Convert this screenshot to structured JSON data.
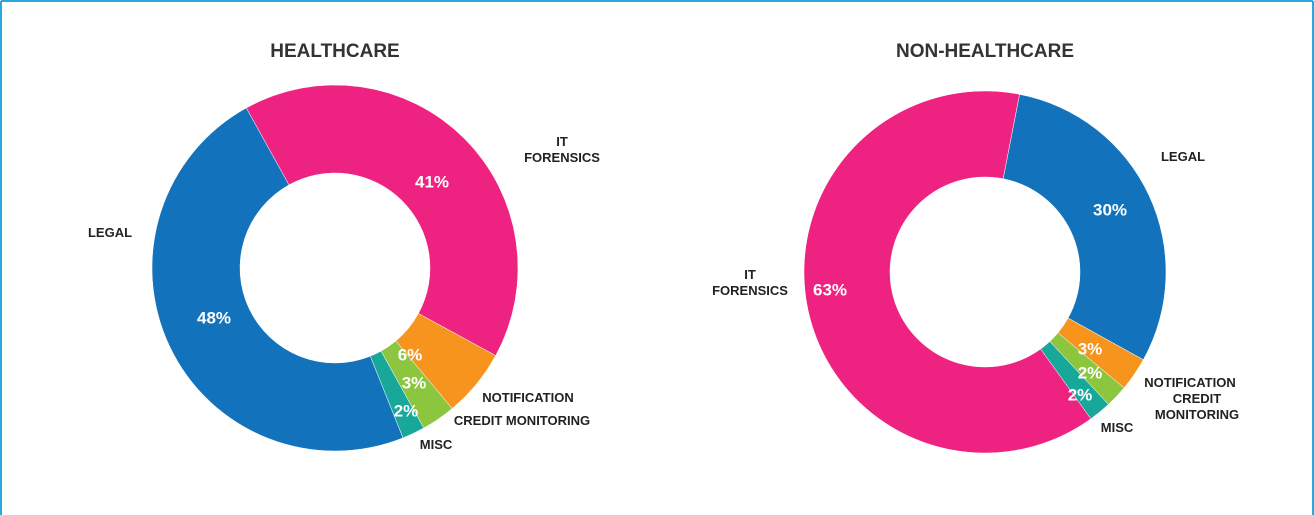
{
  "chart_data": [
    {
      "type": "pie",
      "title": "HEALTHCARE",
      "categories": [
        "IT FORENSICS",
        "NOTIFICATION",
        "CREDIT MONITORING",
        "MISC",
        "LEGAL"
      ],
      "values": [
        41,
        6,
        3,
        2,
        48
      ],
      "value_labels": [
        "41%",
        "6%",
        "3%",
        "2%",
        "48%"
      ],
      "colors": [
        "#ee2280",
        "#f7941d",
        "#8cc63f",
        "#17a89a",
        "#1272bc"
      ]
    },
    {
      "type": "pie",
      "title": "NON-HEALTHCARE",
      "categories": [
        "LEGAL",
        "NOTIFICATION",
        "CREDIT MONITORING",
        "MISC",
        "IT FORENSICS"
      ],
      "values": [
        30,
        3,
        2,
        2,
        63
      ],
      "value_labels": [
        "30%",
        "3%",
        "2%",
        "2%",
        "63%"
      ],
      "colors": [
        "#1272bc",
        "#f7941d",
        "#8cc63f",
        "#17a89a",
        "#ee2280"
      ]
    }
  ]
}
